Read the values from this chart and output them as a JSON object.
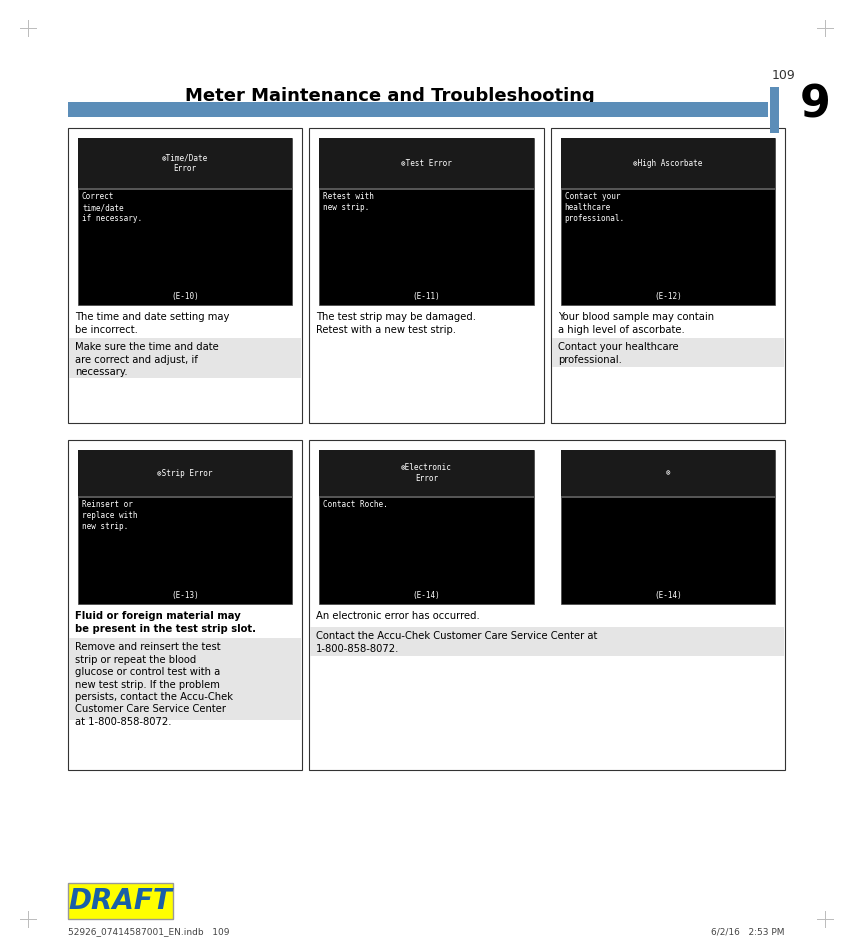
{
  "page_bg": "#ffffff",
  "title": "Meter Maintenance and Troubleshooting",
  "chapter_num": "9",
  "title_color": "#000000",
  "title_fontsize": 13,
  "header_bar_color": "#5b8db8",
  "draft_text": "DRAFT",
  "draft_bg": "#ffff00",
  "draft_color": "#1a5fa8",
  "footer_left": "52926_07414587001_EN.indb   109",
  "footer_right": "6/2/16   2:53 PM",
  "footer_center": "109",
  "top_row_panels": [
    {
      "screen_title": "⊗Time/Date\nError",
      "screen_body": "Correct\ntime/date\nif necessary.",
      "screen_code": "(E-10)",
      "desc1": "The time and date setting may\nbe incorrect.",
      "desc2": "Make sure the time and date\nare correct and adjust, if\nnecessary."
    },
    {
      "screen_title": "⊗Test Error",
      "screen_body": "Retest with\nnew strip.",
      "screen_code": "(E-11)",
      "desc1": "The test strip may be damaged.\nRetest with a new test strip.",
      "desc2": ""
    },
    {
      "screen_title": "⊗High Ascorbate",
      "screen_body": "Contact your\nhealthcare\nprofessional.",
      "screen_code": "(E-12)",
      "desc1": "Your blood sample may contain\na high level of ascorbate.",
      "desc2": "Contact your healthcare\nprofessional."
    }
  ],
  "bottom_row_panels": [
    {
      "screen_title": "⊗Strip Error",
      "screen_body": "Reinsert or\nreplace with\nnew strip.",
      "screen_code": "(E-13)",
      "desc1": "Fluid or foreign material may\nbe present in the test strip slot.",
      "desc2": "Remove and reinsert the test\nstrip or repeat the blood\nglucose or control test with a\nnew test strip. If the problem\npersists, contact the Accu-Chek\nCustomer Care Service Center\nat 1-800-858-8072.",
      "desc1_bold": true
    },
    {
      "screen_title": "⊗Electronic\nError",
      "screen_body": "Contact Roche.",
      "screen_code": "(E-14)",
      "desc1": "An electronic error has occurred.",
      "desc2": "Contact the Accu-Chek Customer Care Service Center at\n1-800-858-8072.",
      "extra_screen_title": "⊗",
      "extra_screen_body": "",
      "extra_screen_code": "(E-14)"
    }
  ]
}
